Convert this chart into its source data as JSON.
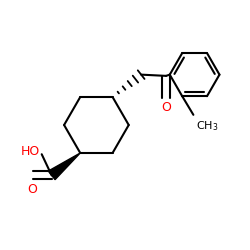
{
  "bg_color": "#ffffff",
  "bond_color": "#000000",
  "o_color": "#ff0000",
  "line_width": 1.5,
  "figsize": [
    2.5,
    2.5
  ],
  "dpi": 100,
  "xlim": [
    0.0,
    1.0
  ],
  "ylim": [
    0.05,
    0.95
  ]
}
